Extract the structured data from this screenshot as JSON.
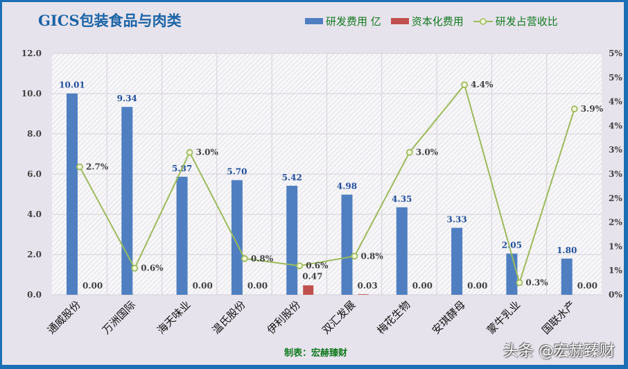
{
  "title": "GICS包装食品与肉类",
  "legend": [
    {
      "label": "研发费用 亿",
      "color": "#4f7fc1",
      "type": "bar"
    },
    {
      "label": "资本化费用",
      "color": "#c0504d",
      "type": "bar"
    },
    {
      "label": "研发占营收比",
      "color": "#9bbb59",
      "type": "line"
    }
  ],
  "maker": "制表：宏赫臻财",
  "watermark": "头条 @宏赫臻财",
  "chart_data": {
    "type": "bar",
    "title": "GICS包装食品与肉类",
    "categories": [
      "通威股份",
      "万洲国际",
      "海天味业",
      "温氏股份",
      "伊利股份",
      "双汇发展",
      "梅花生物",
      "安琪酵母",
      "蒙牛乳业",
      "国联水产"
    ],
    "series": [
      {
        "name": "研发费用 亿",
        "type": "bar",
        "axis": "left",
        "color": "#4f7fc1",
        "values": [
          10.01,
          9.34,
          5.87,
          5.7,
          5.42,
          4.98,
          4.35,
          3.33,
          2.05,
          1.8
        ],
        "labels": [
          "10.01",
          "9.34",
          "5.87",
          "5.70",
          "5.42",
          "4.98",
          "4.35",
          "3.33",
          "2.05",
          "1.80"
        ]
      },
      {
        "name": "资本化费用",
        "type": "bar",
        "axis": "left",
        "color": "#c0504d",
        "values": [
          0.0,
          0.0,
          0.0,
          0.0,
          0.47,
          0.03,
          0.0,
          0.0,
          0.0,
          0.0
        ],
        "labels": [
          "0.00",
          "",
          "0.00",
          "0.00",
          "0.47",
          "0.03",
          "0.00",
          "0.00",
          "",
          "0.00"
        ]
      },
      {
        "name": "研发占营收比",
        "type": "line",
        "axis": "right",
        "color": "#9bbb59",
        "values": [
          2.7,
          0.6,
          3.0,
          0.8,
          0.6,
          0.8,
          3.0,
          4.4,
          0.3,
          3.9
        ],
        "plot_values": [
          2.65,
          0.55,
          2.95,
          0.75,
          0.6,
          0.8,
          2.95,
          4.35,
          0.25,
          3.85
        ],
        "labels": [
          "2.7%",
          "0.6%",
          "3.0%",
          "0.8%",
          "0.6%",
          "0.8%",
          "3.0%",
          "4.4%",
          "0.3%",
          "3.9%"
        ]
      }
    ],
    "ylabel_left": "",
    "ylim_left": [
      0,
      12
    ],
    "yticks_left": [
      "0.0",
      "2.0",
      "4.0",
      "6.0",
      "8.0",
      "10.0",
      "12.0"
    ],
    "ylim_right": [
      0,
      5
    ],
    "yticks_right": [
      "0%",
      "1%",
      "1%",
      "2%",
      "2%",
      "3%",
      "3%",
      "4%",
      "4%",
      "5%",
      "5%"
    ],
    "grid": true,
    "legend_position": "top-right"
  }
}
